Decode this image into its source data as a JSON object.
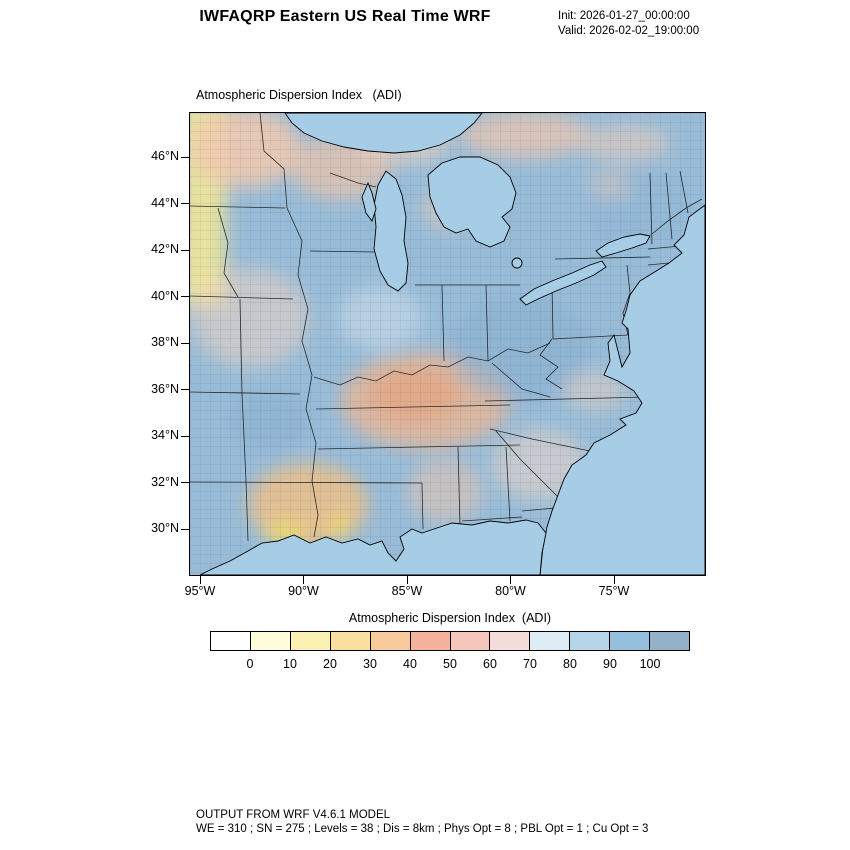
{
  "header": {
    "title": "IWFAQRP Eastern US Real Time WRF",
    "init": "Init: 2026-01-27_00:00:00",
    "valid": "Valid: 2026-02-02_19:00:00"
  },
  "map_panel": {
    "title": "Atmospheric Dispersion Index   (ADI)",
    "lat_ticks": [
      "46°N",
      "44°N",
      "42°N",
      "40°N",
      "38°N",
      "36°N",
      "34°N",
      "32°N",
      "30°N"
    ],
    "lon_ticks": [
      "95°W",
      "90°W",
      "85°W",
      "80°W",
      "75°W"
    ],
    "land_color": "#98bcd8",
    "water_color": "#a6cce6"
  },
  "colorbar": {
    "title": "Atmospheric Dispersion Index  (ADI)",
    "tick_labels": [
      "0",
      "10",
      "20",
      "30",
      "40",
      "50",
      "60",
      "70",
      "80",
      "90",
      "100"
    ],
    "colors": [
      "#ffffff",
      "#fffcda",
      "#fbf1b4",
      "#f9e09e",
      "#f7c99b",
      "#f5b29c",
      "#f6c6bd",
      "#f3dcd9",
      "#dcebf4",
      "#b5d5e9",
      "#94c0de",
      "#93b2c9"
    ]
  },
  "footer": {
    "line1": "OUTPUT FROM WRF V4.6.1 MODEL",
    "line2": "WE = 310 ; SN = 275 ; Levels = 38 ; Dis = 8km ; Phys Opt = 8 ; PBL Opt = 1 ; Cu Opt = 3"
  },
  "chart_data": {
    "type": "heatmap",
    "title": "Atmospheric Dispersion Index (ADI)",
    "x_ticks": [
      "95°W",
      "90°W",
      "85°W",
      "80°W",
      "75°W"
    ],
    "y_ticks": [
      "46°N",
      "44°N",
      "42°N",
      "40°N",
      "38°N",
      "36°N",
      "34°N",
      "32°N",
      "30°N"
    ],
    "value_range": [
      0,
      100
    ],
    "colorbar_ticks": [
      0,
      10,
      20,
      30,
      40,
      50,
      60,
      70,
      80,
      90,
      100
    ],
    "colorbar_colors": [
      "#ffffff",
      "#fffcda",
      "#fbf1b4",
      "#f9e09e",
      "#f7c99b",
      "#f5b29c",
      "#f6c6bd",
      "#f3dcd9",
      "#dcebf4",
      "#b5d5e9",
      "#94c0de",
      "#93b2c9"
    ],
    "field_summary": [
      {
        "region": "Most of the eastern US interior, Appalachians and Northeast",
        "adi_estimate": "70-100"
      },
      {
        "region": "Far western edge strip (Minnesota/Iowa)",
        "adi_estimate": "0-20"
      },
      {
        "region": "Wisconsin, Upper Michigan, southern Ontario",
        "adi_estimate": "30-50"
      },
      {
        "region": "Kentucky/Tennessee region",
        "adi_estimate": "30-50"
      },
      {
        "region": "Louisiana and western Gulf coast",
        "adi_estimate": "10-40"
      },
      {
        "region": "Atlantic Ocean, Gulf of Mexico, Great Lakes",
        "adi_estimate": "water"
      }
    ]
  }
}
